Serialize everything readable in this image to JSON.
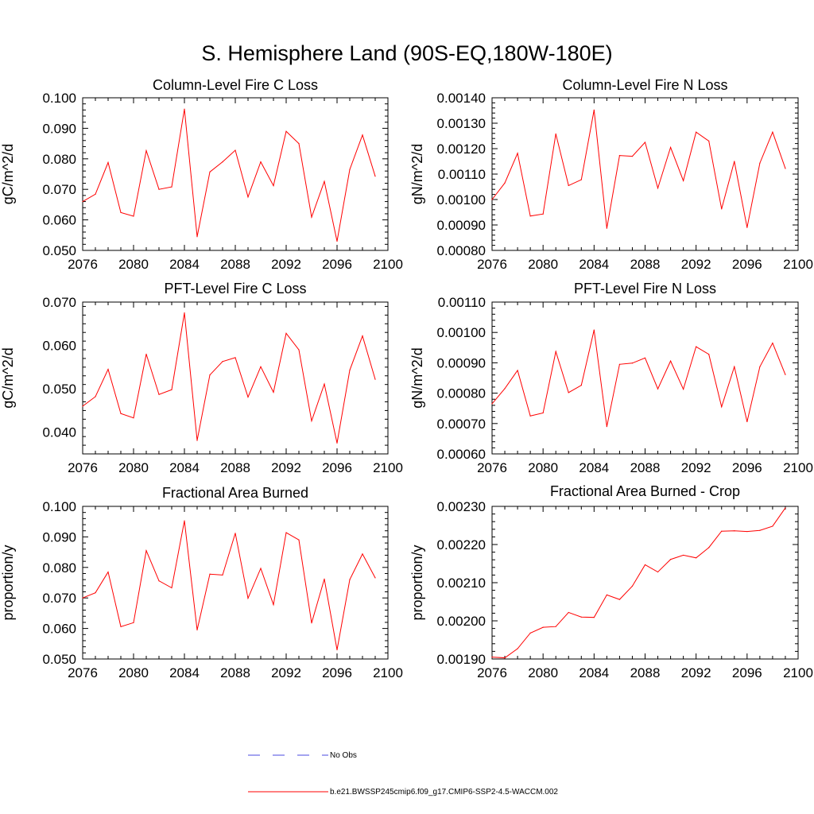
{
  "figure": {
    "title": "S. Hemisphere Land (90S-EQ,180W-180E)"
  },
  "legend": {
    "entries": [
      {
        "label": "No Obs",
        "color": "#4a4ae0",
        "style": "dashed"
      },
      {
        "label": "b.e21.BWSSP245cmip6.f09_g17.CMIP6-SSP2-4.5-WACCM.002",
        "color": "#ff0000",
        "style": "solid"
      }
    ]
  },
  "chart_data": [
    {
      "type": "line",
      "title": "Column-Level Fire C Loss",
      "xlabel": "",
      "ylabel": "gC/m^2/d",
      "xlim": [
        2076,
        2100
      ],
      "ylim": [
        0.05,
        0.1
      ],
      "xticks": [
        "2076",
        "2080",
        "2084",
        "2088",
        "2092",
        "2096",
        "2100"
      ],
      "yticks": [
        "0.050",
        "0.060",
        "0.070",
        "0.080",
        "0.090",
        "0.100"
      ],
      "x": [
        2076,
        2077,
        2078,
        2079,
        2080,
        2081,
        2082,
        2083,
        2084,
        2085,
        2086,
        2087,
        2088,
        2089,
        2090,
        2091,
        2092,
        2093,
        2094,
        2095,
        2096,
        2097,
        2098,
        2099
      ],
      "series": [
        {
          "color": "#ff0000",
          "values": [
            0.066,
            0.0684,
            0.0788,
            0.0624,
            0.0612,
            0.0827,
            0.07,
            0.0708,
            0.0963,
            0.0545,
            0.0757,
            0.079,
            0.0828,
            0.0675,
            0.079,
            0.0712,
            0.089,
            0.085,
            0.0609,
            0.0726,
            0.053,
            0.0765,
            0.0878,
            0.0743
          ]
        }
      ]
    },
    {
      "type": "line",
      "title": "Column-Level Fire N Loss",
      "xlabel": "",
      "ylabel": "gN/m^2/d",
      "xlim": [
        2076,
        2100
      ],
      "ylim": [
        0.0008,
        0.0014
      ],
      "xticks": [
        "2076",
        "2080",
        "2084",
        "2088",
        "2092",
        "2096",
        "2100"
      ],
      "yticks": [
        "0.00080",
        "0.00090",
        "0.00100",
        "0.00110",
        "0.00120",
        "0.00130",
        "0.00140"
      ],
      "x": [
        2076,
        2077,
        2078,
        2079,
        2080,
        2081,
        2082,
        2083,
        2084,
        2085,
        2086,
        2087,
        2088,
        2089,
        2090,
        2091,
        2092,
        2093,
        2094,
        2095,
        2096,
        2097,
        2098,
        2099
      ],
      "series": [
        {
          "color": "#ff0000",
          "values": [
            0.001,
            0.001065,
            0.001182,
            0.000935,
            0.000943,
            0.001258,
            0.001055,
            0.001078,
            0.001352,
            0.000887,
            0.001173,
            0.00117,
            0.001225,
            0.001045,
            0.001205,
            0.001074,
            0.001265,
            0.00123,
            0.000963,
            0.00115,
            0.00089,
            0.001143,
            0.001265,
            0.001122
          ]
        }
      ]
    },
    {
      "type": "line",
      "title": "PFT-Level Fire C Loss",
      "xlabel": "",
      "ylabel": "gC/m^2/d",
      "xlim": [
        2076,
        2100
      ],
      "ylim": [
        0.035,
        0.07
      ],
      "xticks": [
        "2076",
        "2080",
        "2084",
        "2088",
        "2092",
        "2096",
        "2100"
      ],
      "yticks": [
        "0.040",
        "0.050",
        "0.060",
        "0.070"
      ],
      "x": [
        2076,
        2077,
        2078,
        2079,
        2080,
        2081,
        2082,
        2083,
        2084,
        2085,
        2086,
        2087,
        2088,
        2089,
        2090,
        2091,
        2092,
        2093,
        2094,
        2095,
        2096,
        2097,
        2098,
        2099
      ],
      "series": [
        {
          "color": "#ff0000",
          "values": [
            0.046,
            0.0482,
            0.0545,
            0.0443,
            0.0433,
            0.058,
            0.0487,
            0.0498,
            0.0675,
            0.0381,
            0.0532,
            0.0563,
            0.0572,
            0.0481,
            0.0551,
            0.0492,
            0.0628,
            0.059,
            0.0426,
            0.0511,
            0.0375,
            0.0543,
            0.0622,
            0.0522
          ]
        }
      ]
    },
    {
      "type": "line",
      "title": "PFT-Level Fire N Loss",
      "xlabel": "",
      "ylabel": "gN/m^2/d",
      "xlim": [
        2076,
        2100
      ],
      "ylim": [
        0.0006,
        0.0011
      ],
      "xticks": [
        "2076",
        "2080",
        "2084",
        "2088",
        "2092",
        "2096",
        "2100"
      ],
      "yticks": [
        "0.00060",
        "0.00070",
        "0.00080",
        "0.00090",
        "0.00100",
        "0.00110"
      ],
      "x": [
        2076,
        2077,
        2078,
        2079,
        2080,
        2081,
        2082,
        2083,
        2084,
        2085,
        2086,
        2087,
        2088,
        2089,
        2090,
        2091,
        2092,
        2093,
        2094,
        2095,
        2096,
        2097,
        2098,
        2099
      ],
      "series": [
        {
          "color": "#ff0000",
          "values": [
            0.000765,
            0.000815,
            0.000875,
            0.000725,
            0.000735,
            0.000937,
            0.000802,
            0.000826,
            0.001008,
            0.00069,
            0.000895,
            0.000899,
            0.000916,
            0.000814,
            0.000906,
            0.000813,
            0.000953,
            0.000928,
            0.000755,
            0.000887,
            0.000706,
            0.000887,
            0.000965,
            0.000861
          ]
        }
      ]
    },
    {
      "type": "line",
      "title": "Fractional Area Burned",
      "xlabel": "",
      "ylabel": "proportion/y",
      "xlim": [
        2076,
        2100
      ],
      "ylim": [
        0.05,
        0.1
      ],
      "xticks": [
        "2076",
        "2080",
        "2084",
        "2088",
        "2092",
        "2096",
        "2100"
      ],
      "yticks": [
        "0.050",
        "0.060",
        "0.070",
        "0.080",
        "0.090",
        "0.100"
      ],
      "x": [
        2076,
        2077,
        2078,
        2079,
        2080,
        2081,
        2082,
        2083,
        2084,
        2085,
        2086,
        2087,
        2088,
        2089,
        2090,
        2091,
        2092,
        2093,
        2094,
        2095,
        2096,
        2097,
        2098,
        2099
      ],
      "series": [
        {
          "color": "#ff0000",
          "values": [
            0.07,
            0.0717,
            0.0785,
            0.0606,
            0.0619,
            0.0855,
            0.0756,
            0.0733,
            0.0953,
            0.0595,
            0.0778,
            0.0775,
            0.0912,
            0.0699,
            0.0797,
            0.0678,
            0.0914,
            0.089,
            0.0618,
            0.0762,
            0.053,
            0.076,
            0.0844,
            0.0766
          ]
        }
      ]
    },
    {
      "type": "line",
      "title": "Fractional Area Burned - Crop",
      "xlabel": "",
      "ylabel": "proportion/y",
      "xlim": [
        2076,
        2100
      ],
      "ylim": [
        0.0019,
        0.0023
      ],
      "xticks": [
        "2076",
        "2080",
        "2084",
        "2088",
        "2092",
        "2096",
        "2100"
      ],
      "yticks": [
        "0.00190",
        "0.00200",
        "0.00210",
        "0.00220",
        "0.00230"
      ],
      "x": [
        2076,
        2077,
        2078,
        2079,
        2080,
        2081,
        2082,
        2083,
        2084,
        2085,
        2086,
        2087,
        2088,
        2089,
        2090,
        2091,
        2092,
        2093,
        2094,
        2095,
        2096,
        2097,
        2098,
        2099
      ],
      "series": [
        {
          "color": "#ff0000",
          "values": [
            0.001905,
            0.001903,
            0.001927,
            0.001968,
            0.001983,
            0.001985,
            0.002022,
            0.00201,
            0.002009,
            0.002068,
            0.002056,
            0.002091,
            0.002147,
            0.002128,
            0.002161,
            0.002172,
            0.002165,
            0.002192,
            0.002235,
            0.002236,
            0.002234,
            0.002237,
            0.002248,
            0.002296
          ]
        }
      ]
    }
  ]
}
